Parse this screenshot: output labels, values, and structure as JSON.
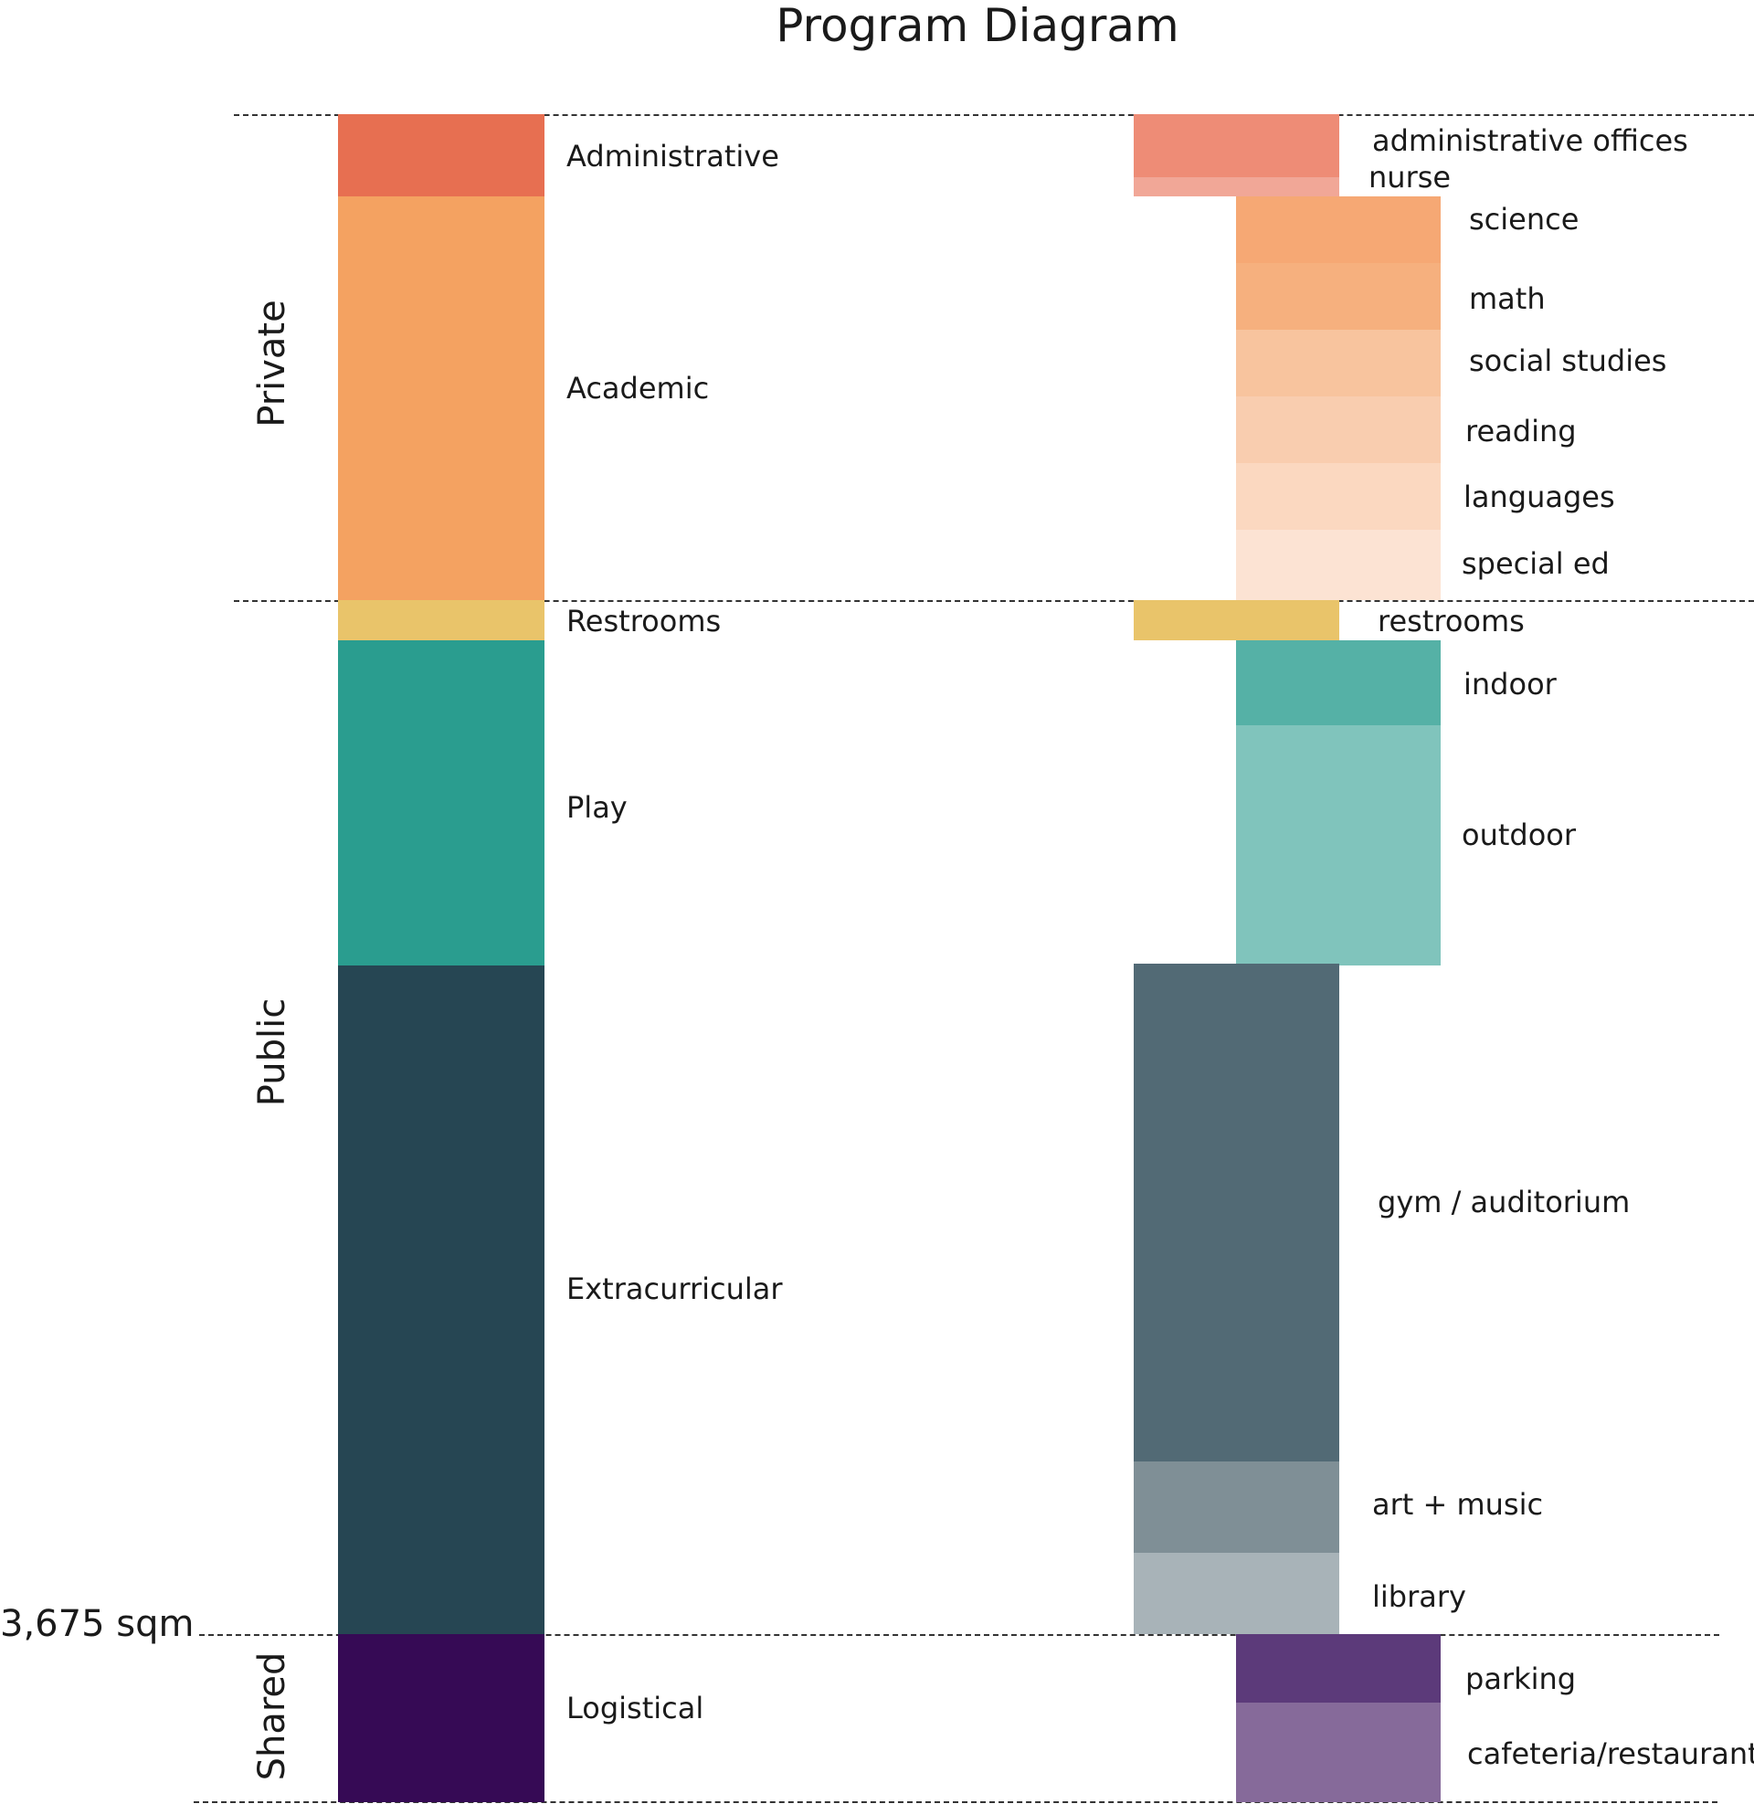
{
  "title": "Program Diagram",
  "zones": {
    "private": "Private",
    "public": "Public",
    "shared": "Shared"
  },
  "area_label": "3,675 sqm",
  "categories": [
    {
      "key": "administrative",
      "label": "Administrative",
      "color": "#E76F51"
    },
    {
      "key": "academic",
      "label": "Academic",
      "color": "#F4A261"
    },
    {
      "key": "restrooms",
      "label": "Restrooms",
      "color": "#E9C46A"
    },
    {
      "key": "play",
      "label": "Play",
      "color": "#2A9D8F"
    },
    {
      "key": "extracurricular",
      "label": "Extracurricular",
      "color": "#264653"
    },
    {
      "key": "logistical",
      "label": "Logistical",
      "color": "#360A55"
    }
  ],
  "subcategories": [
    {
      "key": "administrative_offices",
      "label": "administrative offices",
      "color": "#EE8C76"
    },
    {
      "key": "nurse",
      "label": "nurse",
      "color": "#F1A797"
    },
    {
      "key": "science",
      "label": "science",
      "color": "#F6A874"
    },
    {
      "key": "math",
      "label": "math",
      "color": "#F6B07E"
    },
    {
      "key": "social_studies",
      "label": "social studies",
      "color": "#F8C49E"
    },
    {
      "key": "reading",
      "label": "reading",
      "color": "#F9CDAF"
    },
    {
      "key": "languages",
      "label": "languages",
      "color": "#FBD8C0"
    },
    {
      "key": "special_ed",
      "label": "special ed",
      "color": "#FCE3D3"
    },
    {
      "key": "restrooms",
      "label": "restrooms",
      "color": "#E9C46A"
    },
    {
      "key": "indoor",
      "label": "indoor",
      "color": "#55B1A6"
    },
    {
      "key": "outdoor",
      "label": "outdoor",
      "color": "#80C4BC"
    },
    {
      "key": "gym_auditorium",
      "label": "gym / auditorium",
      "color": "#526A75"
    },
    {
      "key": "art_music",
      "label": "art + music",
      "color": "#7F8F96"
    },
    {
      "key": "library",
      "label": "library",
      "color": "#A8B3B8"
    },
    {
      "key": "parking",
      "label": "parking",
      "color": "#5C3A7A"
    },
    {
      "key": "cafeteria_restaurant",
      "label": "cafeteria/restaurant",
      "color": "#866A9A"
    }
  ]
}
